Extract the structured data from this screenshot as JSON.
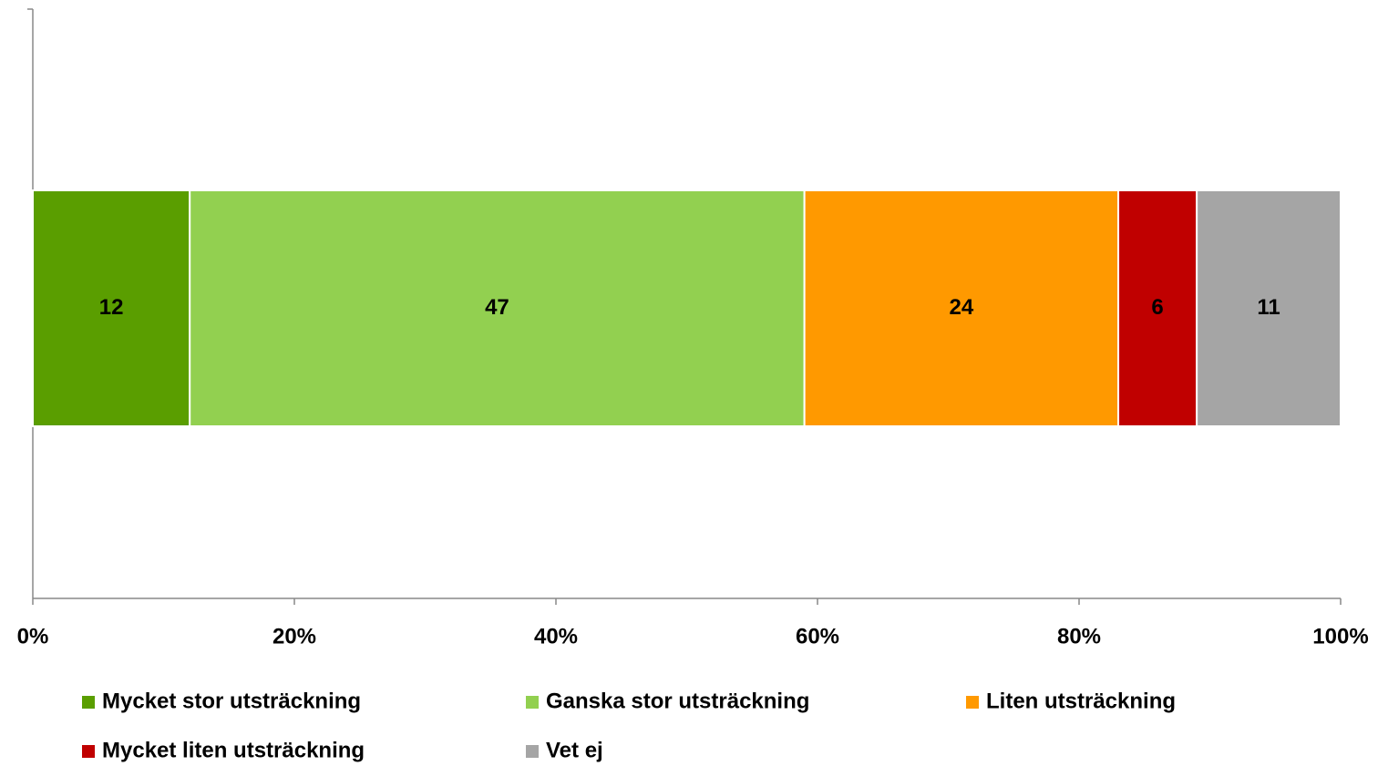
{
  "chart_data": {
    "type": "bar",
    "orientation": "horizontal",
    "stacked": true,
    "categories": [
      null
    ],
    "series": [
      {
        "name": "Mycket stor utsträckning",
        "color": "#5a9e00",
        "values": [
          12
        ]
      },
      {
        "name": "Ganska stor utsträckning",
        "color": "#92d050",
        "values": [
          47
        ]
      },
      {
        "name": "Liten utsträckning",
        "color": "#ff9900",
        "values": [
          24
        ]
      },
      {
        "name": "Mycket liten utsträckning",
        "color": "#c00000",
        "values": [
          6
        ]
      },
      {
        "name": "Vet ej",
        "color": "#a5a5a5",
        "values": [
          11
        ]
      }
    ],
    "xlim": [
      0,
      100
    ],
    "xticks": [
      {
        "value": 0,
        "label": "0%"
      },
      {
        "value": 20,
        "label": "20%"
      },
      {
        "value": 40,
        "label": "40%"
      },
      {
        "value": 60,
        "label": "60%"
      },
      {
        "value": 80,
        "label": "80%"
      },
      {
        "value": 100,
        "label": "100%"
      }
    ],
    "legend": "bottom"
  }
}
